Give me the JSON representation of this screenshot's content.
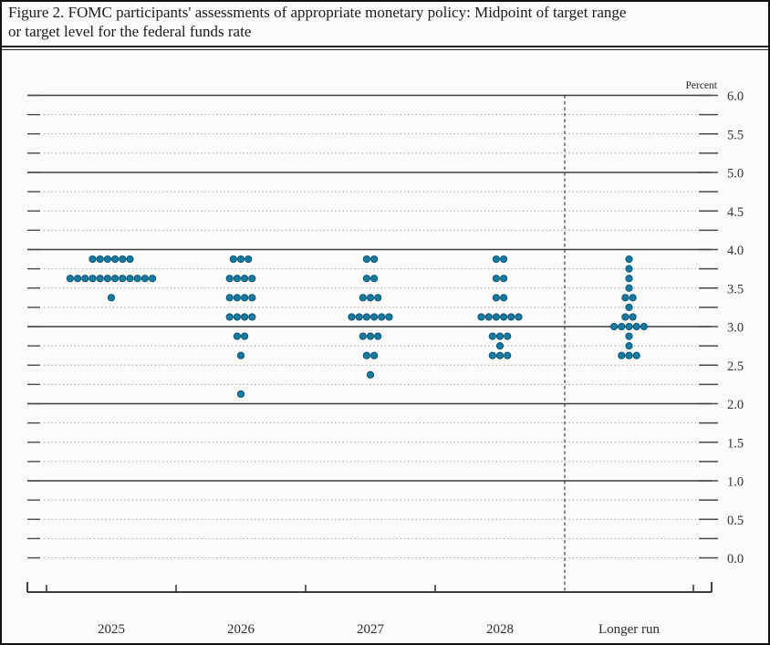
{
  "figure": {
    "title_lines": [
      "Figure 2. FOMC participants' assessments of appropriate monetary policy: Midpoint of target range",
      "or target level for the federal funds rate"
    ]
  },
  "chart_data": {
    "type": "scatter",
    "subtype": "fomc-dot-plot",
    "title": "FOMC participants' assessments of appropriate monetary policy: Midpoint of target range or target level for the federal funds rate",
    "unit_label": "Percent",
    "categories": [
      "2025",
      "2026",
      "2027",
      "2028",
      "Longer run"
    ],
    "ylim": [
      0.0,
      6.0
    ],
    "y_major_step": 0.5,
    "y_minor_step": 0.25,
    "y_tick_labels": [
      "6.0",
      "5.5",
      "5.0",
      "4.5",
      "4.0",
      "3.5",
      "3.0",
      "2.5",
      "2.0",
      "1.5",
      "1.0",
      "0.5",
      "0.0"
    ],
    "solid_gridline_values": [
      6.0,
      5.0,
      4.0,
      3.0,
      2.0,
      1.0
    ],
    "grid": "dotted lines at each 0.25 increment, solid lines at whole percents",
    "legend": "none",
    "separator_before_category": "Longer run",
    "dot_color": "#187a9e",
    "dot_edge_color": "#0b5577",
    "series": [
      {
        "name": "2025",
        "dots": [
          {
            "rate": 3.875,
            "count": 6
          },
          {
            "rate": 3.625,
            "count": 12
          },
          {
            "rate": 3.375,
            "count": 1
          }
        ]
      },
      {
        "name": "2026",
        "dots": [
          {
            "rate": 3.875,
            "count": 3
          },
          {
            "rate": 3.625,
            "count": 4
          },
          {
            "rate": 3.375,
            "count": 4
          },
          {
            "rate": 3.125,
            "count": 4
          },
          {
            "rate": 2.875,
            "count": 2
          },
          {
            "rate": 2.625,
            "count": 1
          },
          {
            "rate": 2.125,
            "count": 1
          }
        ]
      },
      {
        "name": "2027",
        "dots": [
          {
            "rate": 3.875,
            "count": 2
          },
          {
            "rate": 3.625,
            "count": 2
          },
          {
            "rate": 3.375,
            "count": 3
          },
          {
            "rate": 3.125,
            "count": 6
          },
          {
            "rate": 2.875,
            "count": 3
          },
          {
            "rate": 2.625,
            "count": 2
          },
          {
            "rate": 2.375,
            "count": 1
          }
        ]
      },
      {
        "name": "2028",
        "dots": [
          {
            "rate": 3.875,
            "count": 2
          },
          {
            "rate": 3.625,
            "count": 2
          },
          {
            "rate": 3.375,
            "count": 2
          },
          {
            "rate": 3.125,
            "count": 6
          },
          {
            "rate": 2.875,
            "count": 3
          },
          {
            "rate": 2.75,
            "count": 1
          },
          {
            "rate": 2.625,
            "count": 3
          }
        ]
      },
      {
        "name": "Longer run",
        "dots": [
          {
            "rate": 3.875,
            "count": 1
          },
          {
            "rate": 3.75,
            "count": 1
          },
          {
            "rate": 3.625,
            "count": 1
          },
          {
            "rate": 3.5,
            "count": 1
          },
          {
            "rate": 3.375,
            "count": 2
          },
          {
            "rate": 3.25,
            "count": 1
          },
          {
            "rate": 3.125,
            "count": 2
          },
          {
            "rate": 3.0,
            "count": 5
          },
          {
            "rate": 2.875,
            "count": 1
          },
          {
            "rate": 2.75,
            "count": 1
          },
          {
            "rate": 2.625,
            "count": 3
          }
        ]
      }
    ]
  }
}
